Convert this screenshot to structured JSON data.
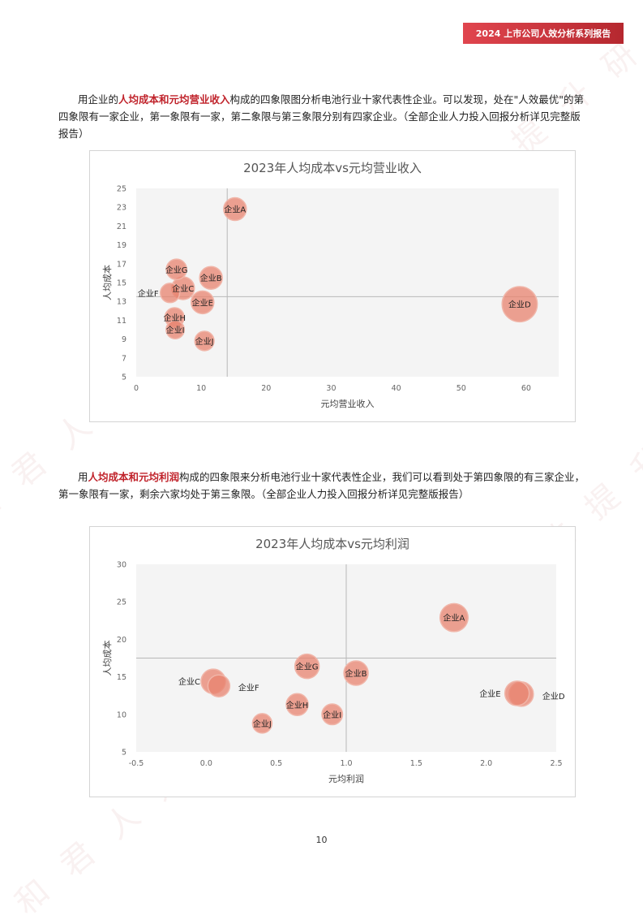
{
  "header": {
    "title": "2024 上市公司人效分析系列报告"
  },
  "para1": {
    "lead": "用企业的",
    "highlight": "人均成本和元均营业收入",
    "rest": "构成的四象限图分析电池行业十家代表性企业。可以发现，处在\"人效最优\"的第四象限有一家企业，第一象限有一家，第二象限与第三象限分别有四家企业。（全部企业人力投入回报分析详见完整版报告）"
  },
  "para2": {
    "lead": "用",
    "highlight": "人均成本和元均利润",
    "rest": "构成的四象限来分析电池行业十家代表性企业，我们可以看到处于第四象限的有三家企业，第一象限有一家，剩余六家均处于第三象限。（全部企业人力投入回报分析详见完整版报告）"
  },
  "page_number": "10",
  "chart_data": [
    {
      "type": "scatter",
      "title": "2023年人均成本vs元均营业收入",
      "xlabel": "元均营业收入",
      "ylabel": "人均成本",
      "xlim": [
        0,
        65
      ],
      "ylim": [
        5,
        25
      ],
      "xticks": [
        0,
        10,
        20,
        30,
        40,
        50,
        60
      ],
      "yticks": [
        5,
        7,
        9,
        11,
        13,
        15,
        17,
        19,
        21,
        23,
        25
      ],
      "x_ref": 14,
      "y_ref": 13.5,
      "marker_color": "#e8836f",
      "grid": false,
      "points": [
        {
          "label": "企业A",
          "x": 15.2,
          "y": 22.8,
          "size": 1.0
        },
        {
          "label": "企业B",
          "x": 11.5,
          "y": 15.5,
          "size": 1.0
        },
        {
          "label": "企业C",
          "x": 7.2,
          "y": 14.4,
          "size": 1.0
        },
        {
          "label": "企业D",
          "x": 59,
          "y": 12.7,
          "size": 1.55
        },
        {
          "label": "企业E",
          "x": 10.2,
          "y": 12.9,
          "size": 1.0
        },
        {
          "label": "企业F",
          "x": 5.2,
          "y": 13.9,
          "size": 0.85
        },
        {
          "label": "企业G",
          "x": 6.2,
          "y": 16.4,
          "size": 0.9
        },
        {
          "label": "企业H",
          "x": 5.9,
          "y": 11.3,
          "size": 0.85
        },
        {
          "label": "企业I",
          "x": 6.0,
          "y": 10.0,
          "size": 0.8
        },
        {
          "label": "企业J",
          "x": 10.5,
          "y": 8.8,
          "size": 0.85
        }
      ]
    },
    {
      "type": "scatter",
      "title": "2023年人均成本vs元均利润",
      "xlabel": "元均利润",
      "ylabel": "人均成本",
      "xlim": [
        -0.5,
        2.5
      ],
      "ylim": [
        5,
        30
      ],
      "xticks": [
        -0.5,
        0.0,
        0.5,
        1.0,
        1.5,
        2.0,
        2.5
      ],
      "yticks": [
        5,
        10,
        15,
        20,
        25,
        30
      ],
      "xtick_labels": [
        "-0.5",
        "0.0",
        "0.5",
        "1.0",
        "1.5",
        "2.0",
        "2.5"
      ],
      "x_ref": 1.0,
      "y_ref": 17.5,
      "marker_color": "#e8836f",
      "grid": false,
      "points": [
        {
          "label": "企业A",
          "x": 1.77,
          "y": 22.9,
          "size": 1.15
        },
        {
          "label": "企业B",
          "x": 1.07,
          "y": 15.5,
          "size": 1.0
        },
        {
          "label": "企业C",
          "x": 0.05,
          "y": 14.4,
          "size": 1.0
        },
        {
          "label": "企业D",
          "x": 2.25,
          "y": 12.7,
          "size": 1.0
        },
        {
          "label": "企业E",
          "x": 2.22,
          "y": 12.8,
          "size": 1.0
        },
        {
          "label": "企业F",
          "x": 0.09,
          "y": 13.8,
          "size": 0.9
        },
        {
          "label": "企业G",
          "x": 0.72,
          "y": 16.4,
          "size": 1.0
        },
        {
          "label": "企业H",
          "x": 0.65,
          "y": 11.3,
          "size": 0.9
        },
        {
          "label": "企业I",
          "x": 0.9,
          "y": 10.0,
          "size": 0.85
        },
        {
          "label": "企业J",
          "x": 0.4,
          "y": 8.8,
          "size": 0.8
        }
      ]
    }
  ]
}
